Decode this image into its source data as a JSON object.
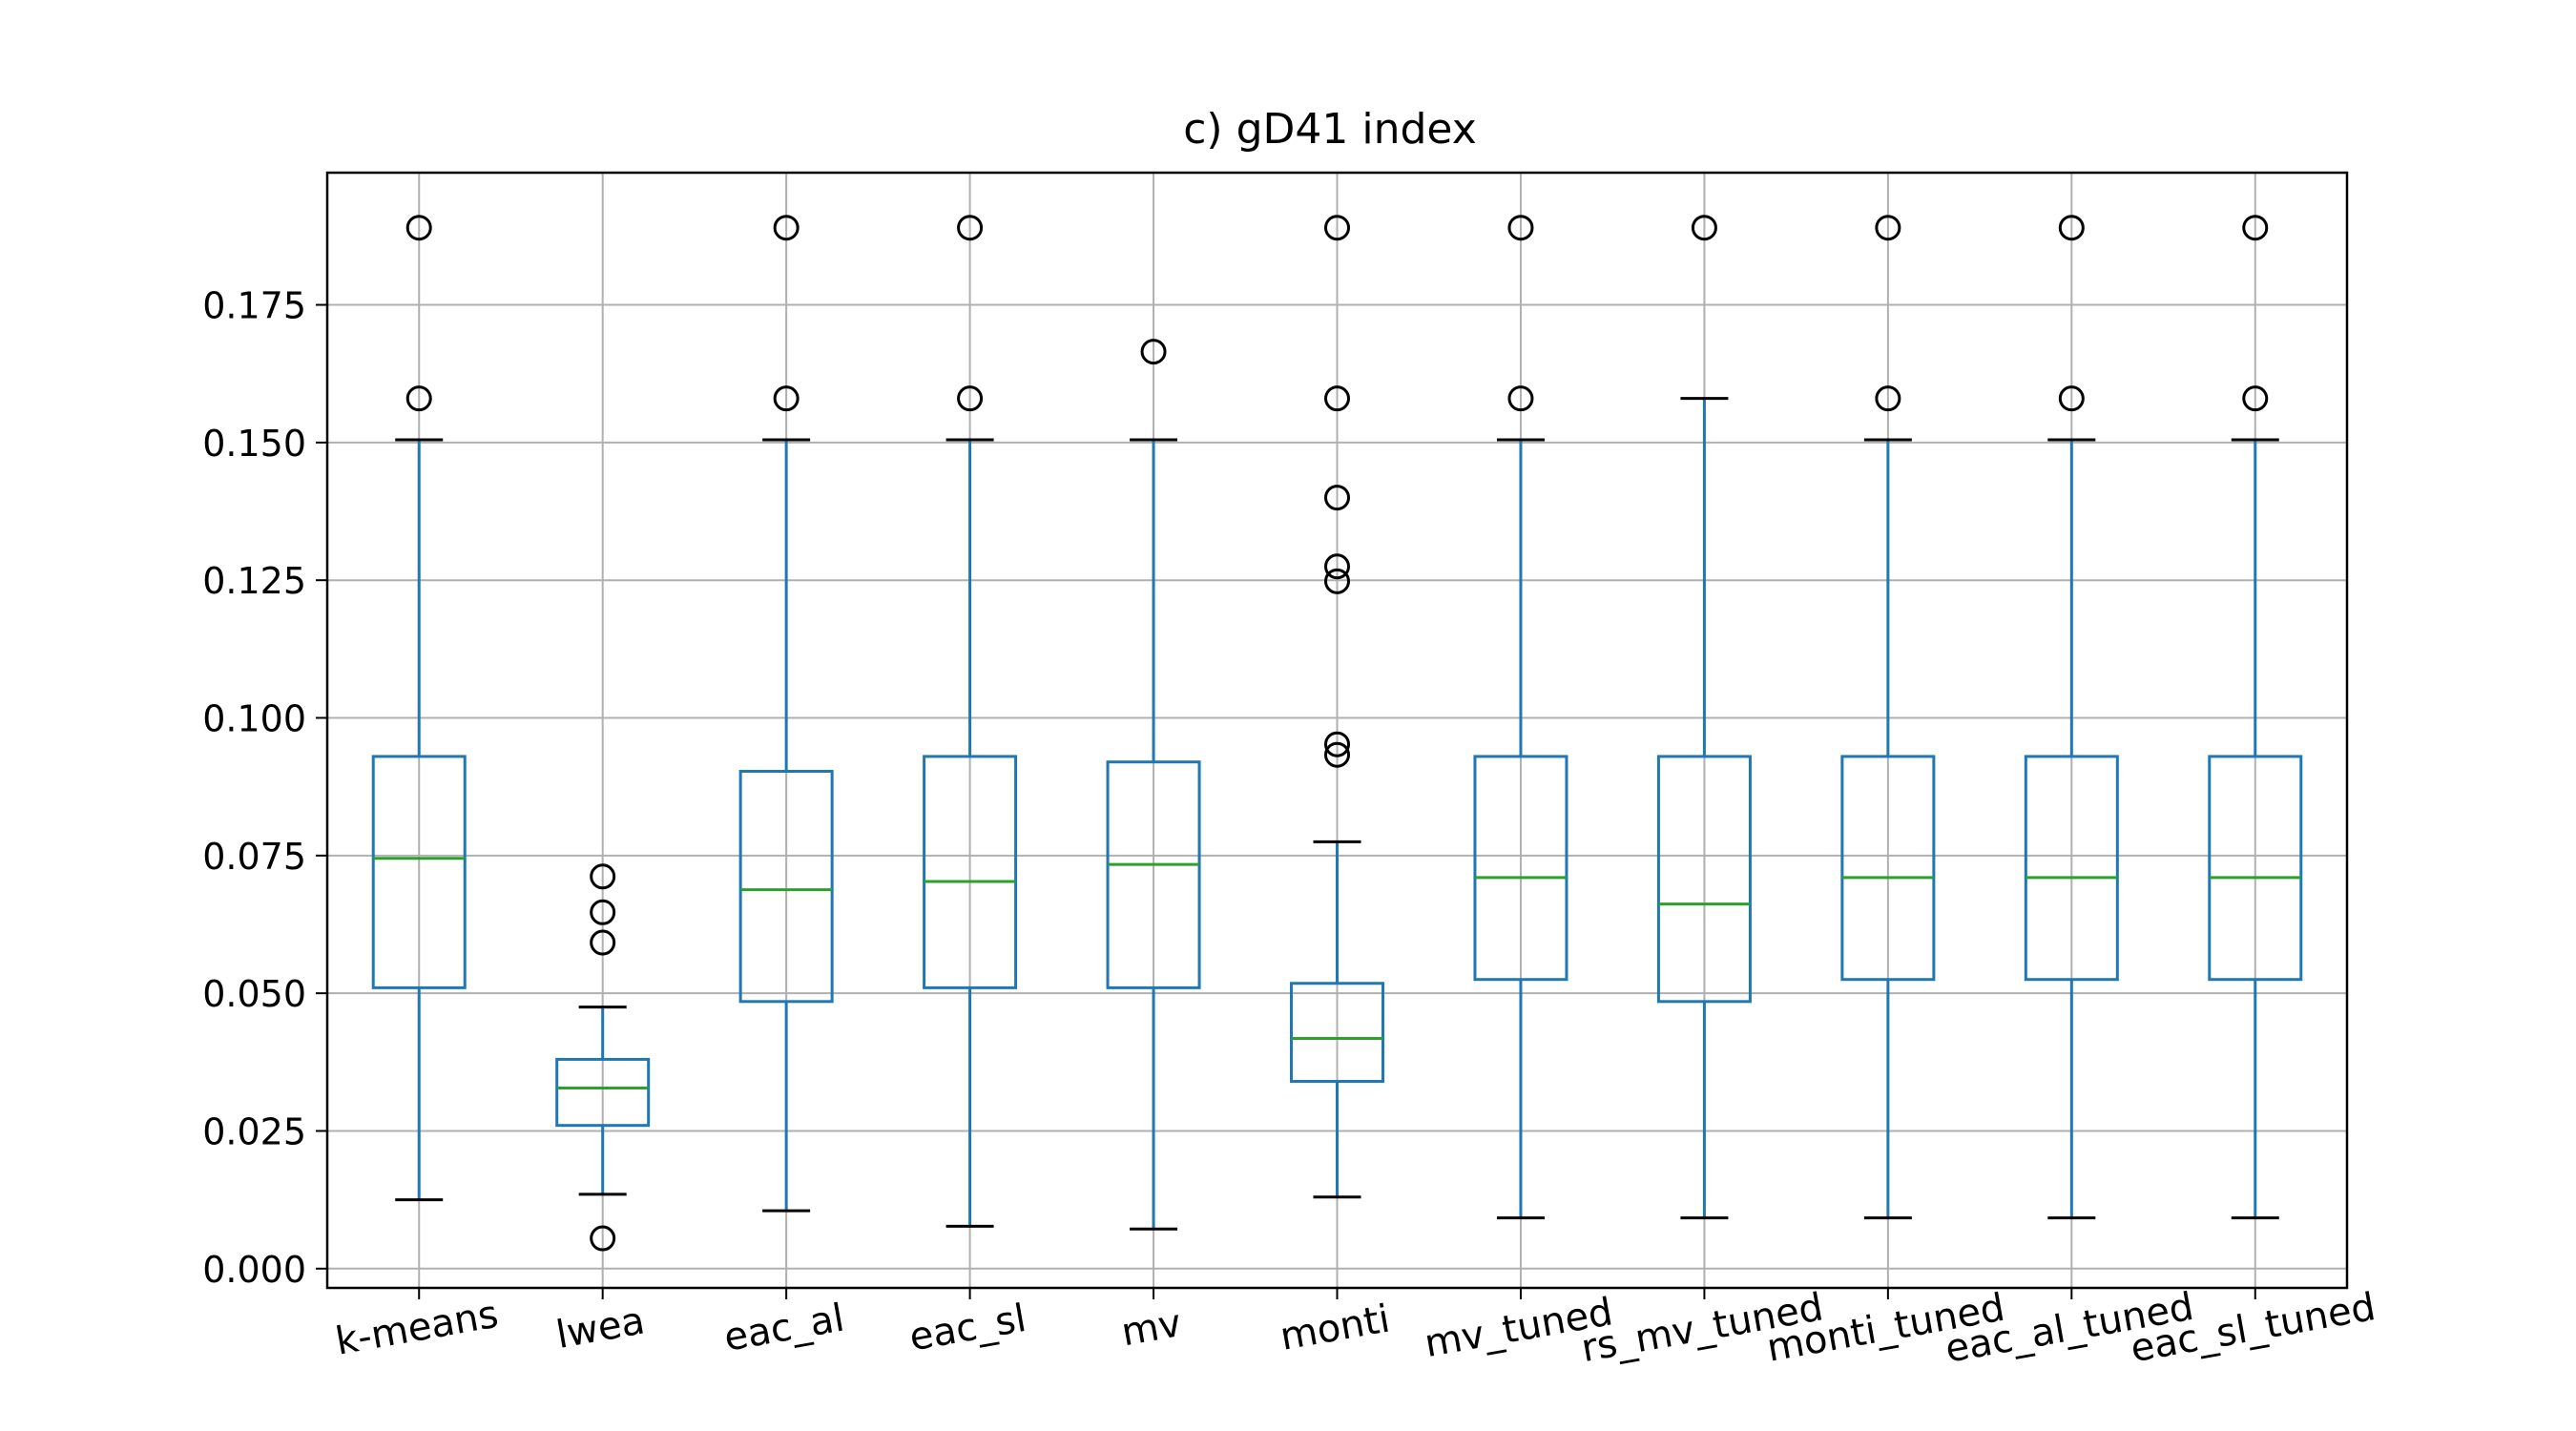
{
  "chart_data": {
    "type": "box",
    "title": "c) gD41 index",
    "xlabel": "",
    "ylabel": "",
    "ylim": [
      -0.0035,
      0.199
    ],
    "grid": true,
    "yticks": [
      0.0,
      0.025,
      0.05,
      0.075,
      0.1,
      0.125,
      0.15,
      0.175
    ],
    "ytick_labels": [
      "0.000",
      "0.025",
      "0.050",
      "0.075",
      "0.100",
      "0.125",
      "0.150",
      "0.175"
    ],
    "categories": [
      "k-means",
      "lwea",
      "eac_al",
      "eac_sl",
      "mv",
      "monti",
      "mv_tuned",
      "rs_mv_tuned",
      "monti_tuned",
      "eac_al_tuned",
      "eac_sl_tuned"
    ],
    "boxes": [
      {
        "category": "k-means",
        "whisker_low": 0.0125,
        "q1": 0.051,
        "median": 0.0745,
        "q3": 0.093,
        "whisker_high": 0.1505,
        "outliers": [
          0.158,
          0.189
        ]
      },
      {
        "category": "lwea",
        "whisker_low": 0.0135,
        "q1": 0.026,
        "median": 0.0328,
        "q3": 0.038,
        "whisker_high": 0.0475,
        "outliers": [
          0.0055,
          0.0592,
          0.0647,
          0.0712
        ]
      },
      {
        "category": "eac_al",
        "whisker_low": 0.0105,
        "q1": 0.0485,
        "median": 0.0688,
        "q3": 0.0903,
        "whisker_high": 0.1505,
        "outliers": [
          0.158,
          0.189
        ]
      },
      {
        "category": "eac_sl",
        "whisker_low": 0.0077,
        "q1": 0.051,
        "median": 0.0703,
        "q3": 0.093,
        "whisker_high": 0.1505,
        "outliers": [
          0.158,
          0.189
        ]
      },
      {
        "category": "mv",
        "whisker_low": 0.0072,
        "q1": 0.051,
        "median": 0.0734,
        "q3": 0.092,
        "whisker_high": 0.1505,
        "outliers": [
          0.1665
        ]
      },
      {
        "category": "monti",
        "whisker_low": 0.013,
        "q1": 0.034,
        "median": 0.0418,
        "q3": 0.0518,
        "whisker_high": 0.0775,
        "outliers": [
          0.0933,
          0.0952,
          0.1248,
          0.1275,
          0.14,
          0.158,
          0.189
        ]
      },
      {
        "category": "mv_tuned",
        "whisker_low": 0.0092,
        "q1": 0.0525,
        "median": 0.071,
        "q3": 0.093,
        "whisker_high": 0.1505,
        "outliers": [
          0.158,
          0.189
        ]
      },
      {
        "category": "rs_mv_tuned",
        "whisker_low": 0.0092,
        "q1": 0.0485,
        "median": 0.0662,
        "q3": 0.093,
        "whisker_high": 0.158,
        "outliers": [
          0.189
        ]
      },
      {
        "category": "monti_tuned",
        "whisker_low": 0.0092,
        "q1": 0.0525,
        "median": 0.071,
        "q3": 0.093,
        "whisker_high": 0.1505,
        "outliers": [
          0.158,
          0.189
        ]
      },
      {
        "category": "eac_al_tuned",
        "whisker_low": 0.0092,
        "q1": 0.0525,
        "median": 0.071,
        "q3": 0.093,
        "whisker_high": 0.1505,
        "outliers": [
          0.158,
          0.189
        ]
      },
      {
        "category": "eac_sl_tuned",
        "whisker_low": 0.0092,
        "q1": 0.0525,
        "median": 0.071,
        "q3": 0.093,
        "whisker_high": 0.1505,
        "outliers": [
          0.158,
          0.189
        ]
      }
    ],
    "colors": {
      "box": "#1f77b4",
      "median": "#2ca02c",
      "whisker_cap": "#000000",
      "outlier": "#000000",
      "grid": "#b0b0b0",
      "frame": "#000000"
    }
  }
}
